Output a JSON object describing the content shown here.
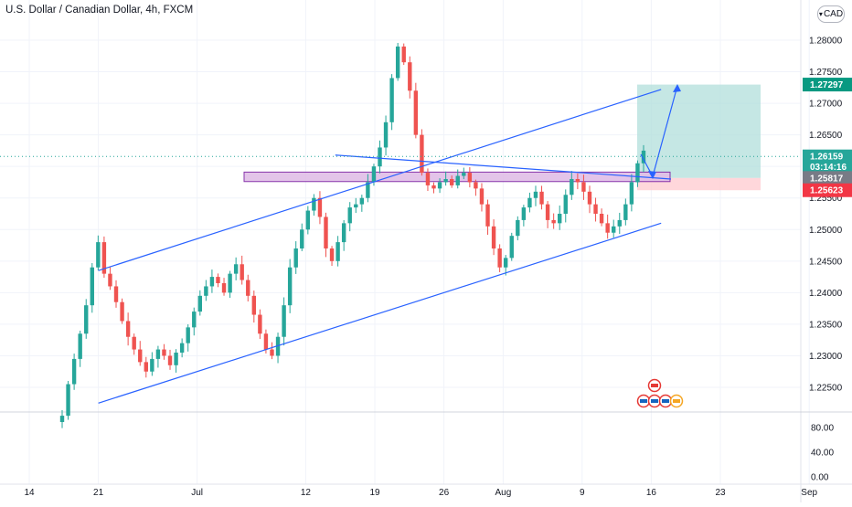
{
  "header": {
    "title": "U.S. Dollar / Canadian Dollar, 4h, FXCM",
    "currency_badge": "CAD"
  },
  "colors": {
    "up": "#26a69a",
    "down": "#ef5350",
    "trendline": "#2962ff",
    "zone_fill": "#e1bee7",
    "zone_border": "#7b1fa2",
    "target_fill": "#b2dfdb",
    "stop_fill": "#ffcdd2",
    "current_tag": "#26a69a",
    "target_tag": "#089981",
    "stop_tag": "#f23645",
    "entry_tag": "#787b86"
  },
  "price_axis": {
    "ticks": [
      "1.28000",
      "1.27500",
      "1.27000",
      "1.26500",
      "1.26000",
      "1.25500",
      "1.25000",
      "1.24500",
      "1.24000",
      "1.23500",
      "1.23000",
      "1.22500"
    ],
    "tags": {
      "target": "1.27297",
      "current": "1.26159",
      "countdown": "03:14:16",
      "entry": "1.25817",
      "stop": "1.25623"
    }
  },
  "oscillator_axis": {
    "ticks": [
      "80.00",
      "40.00",
      "0.00"
    ]
  },
  "time_axis": {
    "ticks": [
      "14",
      "21",
      "Jul",
      "12",
      "19",
      "26",
      "Aug",
      "9",
      "16",
      "23",
      "Sep"
    ]
  },
  "chart_data": {
    "type": "candlestick",
    "symbol": "USDCAD",
    "timeframe": "4h",
    "ylim": [
      1.2215,
      1.2835
    ],
    "closes": [
      1.2205,
      1.2255,
      1.2295,
      1.2335,
      1.238,
      1.244,
      1.248,
      1.243,
      1.241,
      1.2385,
      1.2355,
      1.233,
      1.231,
      1.229,
      1.2275,
      1.2295,
      1.231,
      1.23,
      1.2285,
      1.2305,
      1.232,
      1.2345,
      1.237,
      1.2395,
      1.241,
      1.2425,
      1.2415,
      1.24,
      1.243,
      1.2445,
      1.242,
      1.2395,
      1.2365,
      1.2335,
      1.231,
      1.23,
      1.233,
      1.238,
      1.244,
      1.247,
      1.25,
      1.253,
      1.255,
      1.252,
      1.247,
      1.245,
      1.248,
      1.251,
      1.2535,
      1.254,
      1.255,
      1.2575,
      1.26,
      1.263,
      1.267,
      1.274,
      1.279,
      1.2765,
      1.272,
      1.265,
      1.259,
      1.257,
      1.2565,
      1.2575,
      1.258,
      1.257,
      1.2585,
      1.259,
      1.2575,
      1.2565,
      1.254,
      1.2505,
      1.247,
      1.244,
      1.2455,
      1.249,
      1.2515,
      1.2535,
      1.255,
      1.256,
      1.254,
      1.2515,
      1.251,
      1.2525,
      1.2555,
      1.258,
      1.2575,
      1.256,
      1.254,
      1.2525,
      1.251,
      1.2495,
      1.2505,
      1.2515,
      1.254,
      1.2575,
      1.2605,
      1.2625
    ],
    "lines": {
      "channel_top": {
        "from": [
          "Jun 21",
          1.2435
        ],
        "to": [
          "Aug 17",
          1.2722
        ]
      },
      "channel_bottom": {
        "from": [
          "Jun 21",
          1.2225
        ],
        "to": [
          "Aug 17",
          1.251
        ]
      },
      "descending_resistance": {
        "from": [
          "Jul 15",
          1.2618
        ],
        "to": [
          "Aug 18",
          1.258
        ]
      },
      "resistance_zone": {
        "top": 1.2591,
        "bottom": 1.2576
      },
      "long_position": {
        "entry": 1.25817,
        "target": 1.27297,
        "stop": 1.25623
      }
    }
  }
}
